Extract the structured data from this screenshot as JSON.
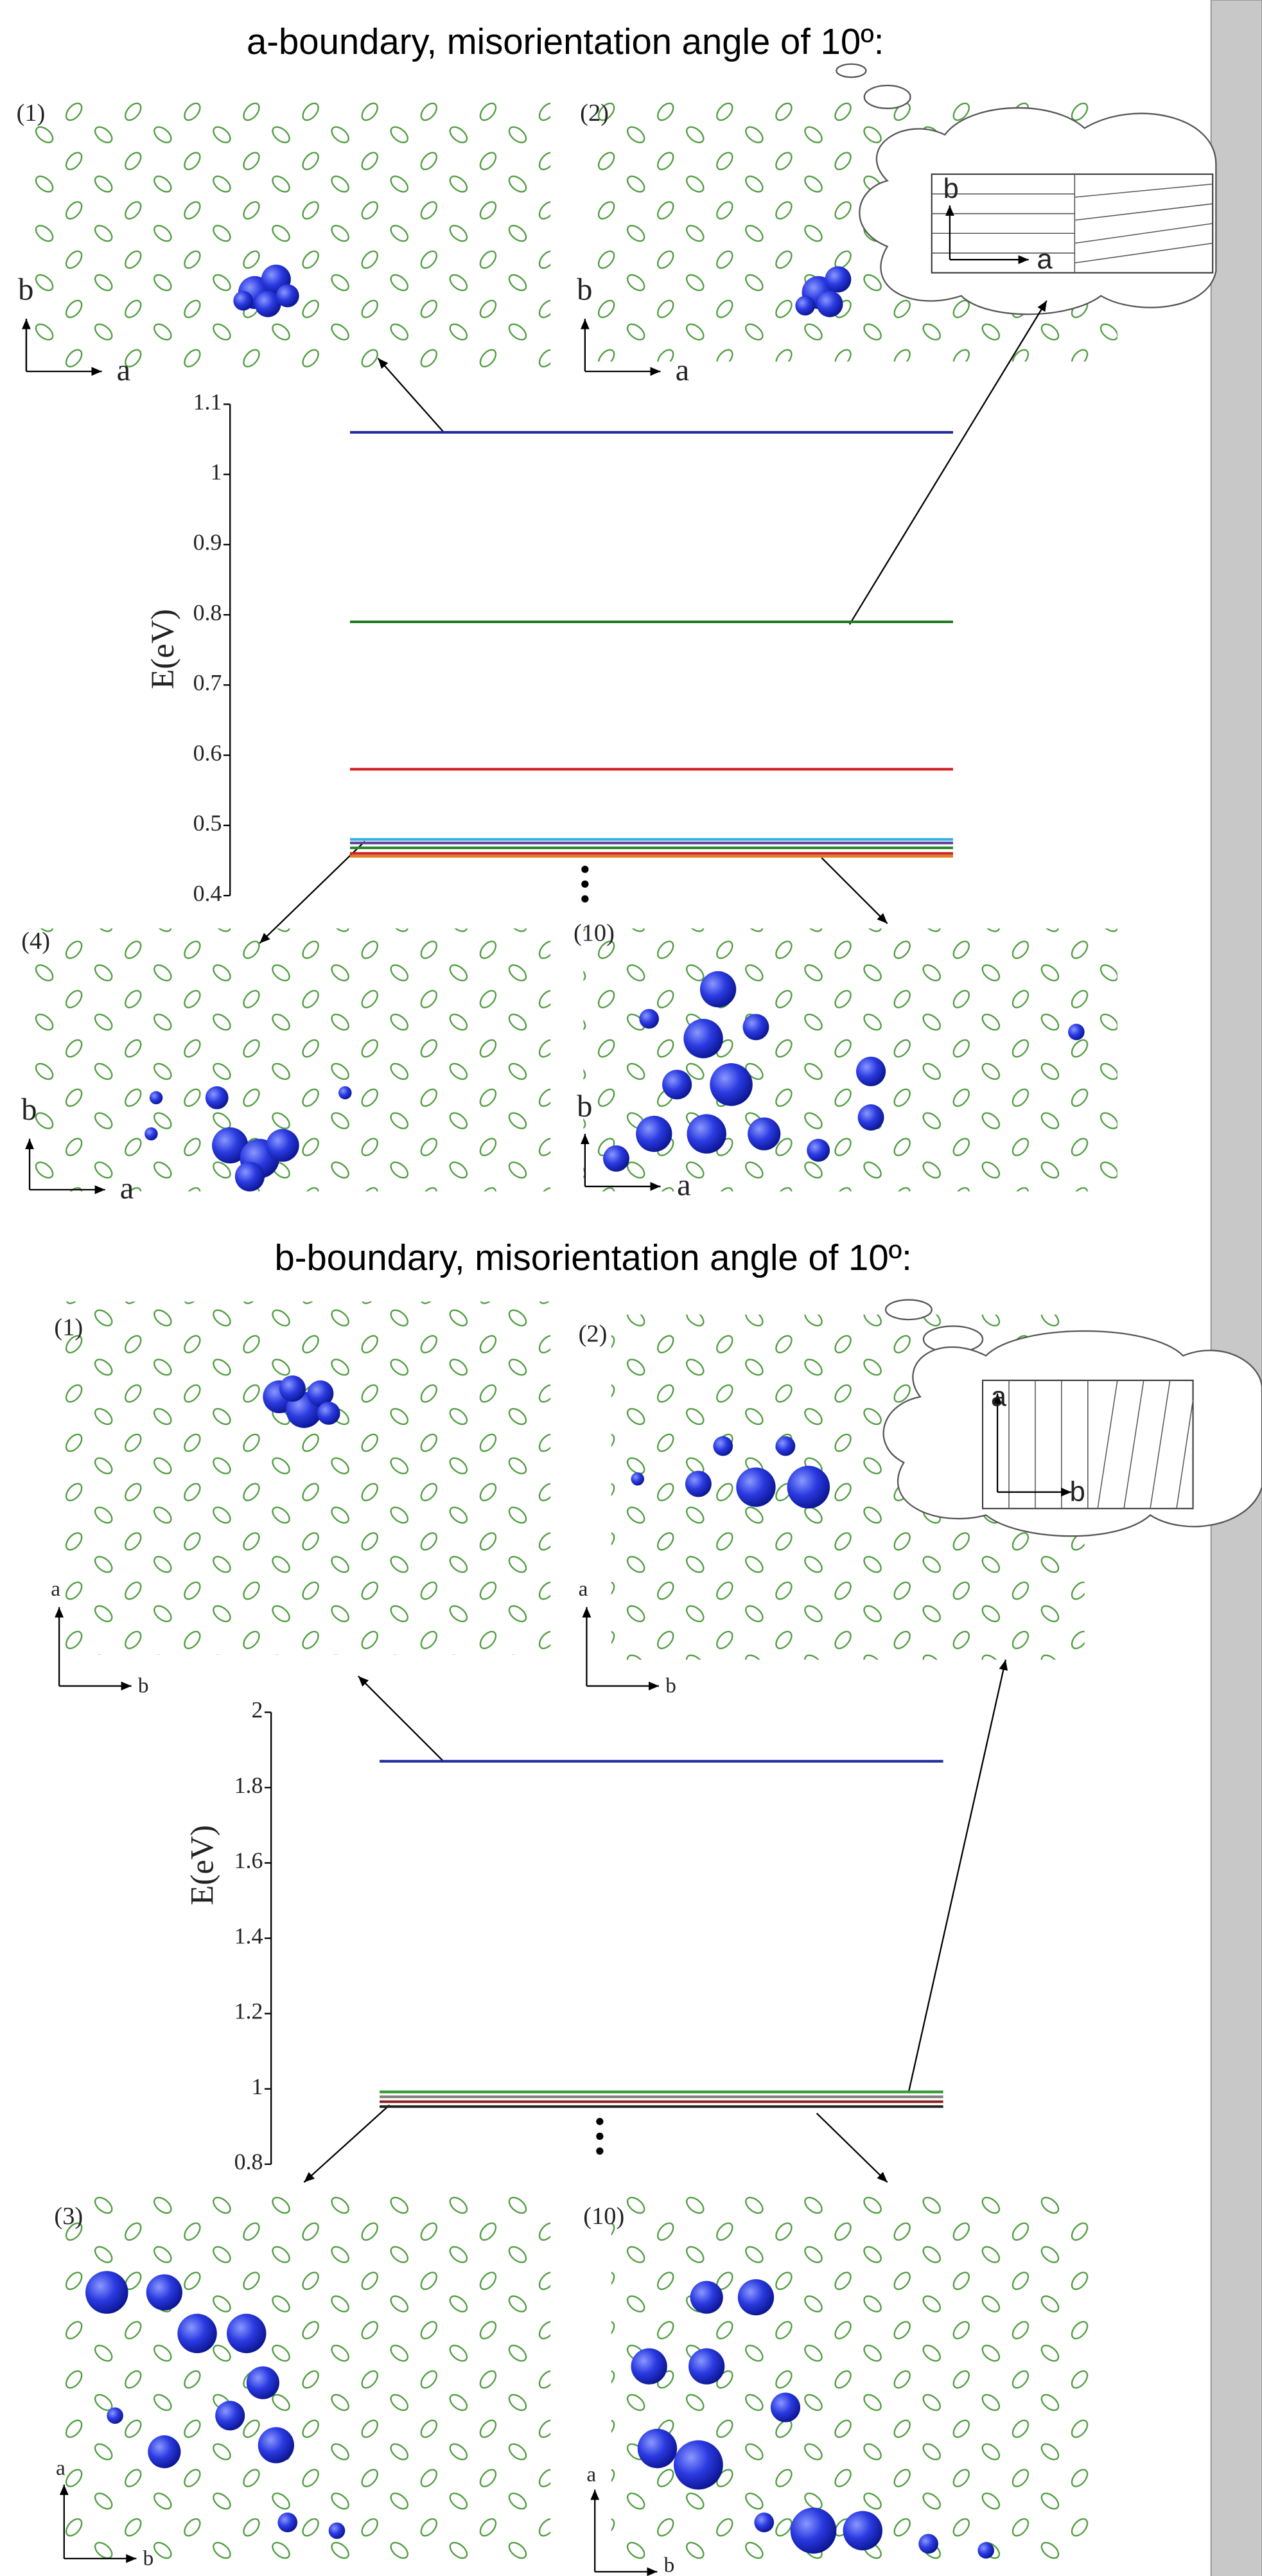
{
  "chart_data": [
    {
      "type": "levels",
      "title": "a-boundary, misorientation angle of 10º:",
      "ylabel": "E(eV)",
      "ylim": [
        0.4,
        1.1
      ],
      "yticks": [
        0.4,
        0.5,
        0.6,
        0.7,
        0.8,
        0.9,
        1,
        1.1
      ],
      "values": [
        1.06,
        0.79,
        0.58,
        0.48,
        0.475,
        0.468,
        0.46,
        0.456
      ],
      "colors": [
        "#1f2a9c",
        "#1e7a1e",
        "#d62020",
        "#30b0e0",
        "#6040a0",
        "#2a8a2a",
        "#d02020",
        "#e08020"
      ],
      "panel_labels": [
        "(1)",
        "(2)",
        "(4)",
        "(10)"
      ],
      "axis_labels": [
        "b",
        "a"
      ]
    },
    {
      "type": "levels",
      "title": "b-boundary, misorientation angle of 10º:",
      "ylabel": "E(eV)",
      "ylim": [
        0.8,
        2
      ],
      "yticks": [
        0.8,
        1,
        1.2,
        1.4,
        1.6,
        1.8,
        2
      ],
      "values": [
        1.87,
        0.992,
        0.979,
        0.966,
        0.953
      ],
      "colors": [
        "#1f2a9c",
        "#2a9a2a",
        "#808080",
        "#8a2020",
        "#202020"
      ],
      "panel_labels": [
        "(1)",
        "(2)",
        "(3)",
        "(10)"
      ],
      "axis_labels": [
        "a",
        "b"
      ]
    }
  ]
}
